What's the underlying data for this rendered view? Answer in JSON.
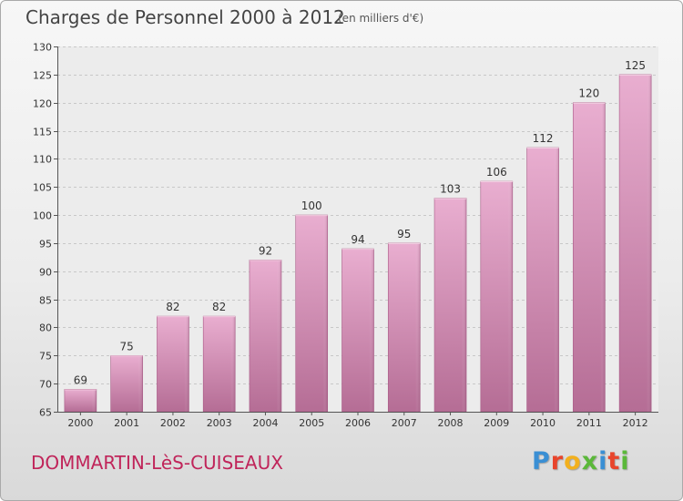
{
  "header": {
    "title": "Charges de Personnel 2000 à 2012",
    "subtitle": "(en milliers d'€)"
  },
  "footer": {
    "place": "DOMMARTIN-LèS-CUISEAUX",
    "logo": "Proxiti",
    "logo_colors": [
      "#3a8fd4",
      "#e8452c",
      "#f2b01e",
      "#5bb83a",
      "#3a8fd4",
      "#e8452c",
      "#5bb83a"
    ]
  },
  "chart_data": {
    "type": "bar",
    "categories": [
      "2000",
      "2001",
      "2002",
      "2003",
      "2004",
      "2005",
      "2006",
      "2007",
      "2008",
      "2009",
      "2010",
      "2011",
      "2012"
    ],
    "values": [
      69,
      75,
      82,
      82,
      92,
      100,
      94,
      95,
      103,
      106,
      112,
      120,
      125
    ],
    "data_labels": [
      "69",
      "75",
      "82",
      "82",
      "92",
      "100",
      "94",
      "95",
      "103",
      "106",
      "112",
      "120",
      "125"
    ],
    "yticks": [
      "65",
      "70",
      "75",
      "80",
      "85",
      "90",
      "95",
      "100",
      "105",
      "110",
      "115",
      "120",
      "125",
      "130"
    ],
    "ylim": [
      65,
      130
    ],
    "grid": true,
    "bar_color": "#c9739f",
    "bar_highlight": "#e6a9cb",
    "plot_background": "#ececec"
  }
}
